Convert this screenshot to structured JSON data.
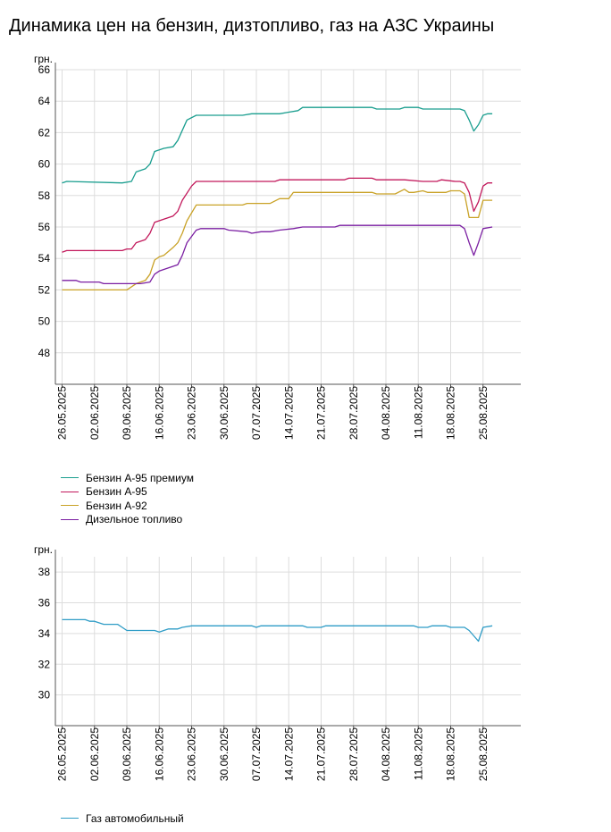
{
  "title": "Динамика цен на бензин, дизтопливо, газ на АЗС Украины",
  "chart_data": [
    {
      "type": "line",
      "ylabel": "грн.",
      "ylim": [
        46,
        66
      ],
      "yticks": [
        48,
        50,
        52,
        54,
        56,
        58,
        60,
        62,
        64,
        66
      ],
      "x_range": [
        "26.05.2025",
        "27.08.2025"
      ],
      "x_ticks": [
        "26.05.2025",
        "02.06.2025",
        "09.06.2025",
        "16.06.2025",
        "23.06.2025",
        "30.06.2025",
        "07.07.2025",
        "14.07.2025",
        "21.07.2025",
        "28.07.2025",
        "04.08.2025",
        "11.08.2025",
        "18.08.2025",
        "25.08.2025"
      ],
      "grid": true,
      "legend_position": "bottom-left",
      "series": [
        {
          "name": "Бензин А-95 премиум",
          "color": "#1a9e8f",
          "points": [
            [
              "26.05.2025",
              58.8
            ],
            [
              "27.05.2025",
              58.9
            ],
            [
              "08.06.2025",
              58.8
            ],
            [
              "10.06.2025",
              58.9
            ],
            [
              "11.06.2025",
              59.5
            ],
            [
              "13.06.2025",
              59.7
            ],
            [
              "14.06.2025",
              60.0
            ],
            [
              "15.06.2025",
              60.8
            ],
            [
              "17.06.2025",
              61.0
            ],
            [
              "19.06.2025",
              61.1
            ],
            [
              "20.06.2025",
              61.5
            ],
            [
              "22.06.2025",
              62.8
            ],
            [
              "24.06.2025",
              63.1
            ],
            [
              "04.07.2025",
              63.1
            ],
            [
              "06.07.2025",
              63.2
            ],
            [
              "12.07.2025",
              63.2
            ],
            [
              "14.07.2025",
              63.3
            ],
            [
              "16.07.2025",
              63.4
            ],
            [
              "17.07.2025",
              63.6
            ],
            [
              "01.08.2025",
              63.6
            ],
            [
              "02.08.2025",
              63.5
            ],
            [
              "07.08.2025",
              63.5
            ],
            [
              "08.08.2025",
              63.6
            ],
            [
              "11.08.2025",
              63.6
            ],
            [
              "12.08.2025",
              63.5
            ],
            [
              "20.08.2025",
              63.5
            ],
            [
              "21.08.2025",
              63.4
            ],
            [
              "22.08.2025",
              62.8
            ],
            [
              "23.08.2025",
              62.1
            ],
            [
              "24.08.2025",
              62.5
            ],
            [
              "25.08.2025",
              63.1
            ],
            [
              "26.08.2025",
              63.2
            ],
            [
              "27.08.2025",
              63.2
            ]
          ]
        },
        {
          "name": "Бензин А-95",
          "color": "#c2185b",
          "points": [
            [
              "26.05.2025",
              54.4
            ],
            [
              "27.05.2025",
              54.5
            ],
            [
              "29.05.2025",
              54.5
            ],
            [
              "30.05.2025",
              54.5
            ],
            [
              "08.06.2025",
              54.5
            ],
            [
              "09.06.2025",
              54.6
            ],
            [
              "10.06.2025",
              54.6
            ],
            [
              "11.06.2025",
              55.0
            ],
            [
              "13.06.2025",
              55.2
            ],
            [
              "14.06.2025",
              55.6
            ],
            [
              "15.06.2025",
              56.3
            ],
            [
              "17.06.2025",
              56.5
            ],
            [
              "19.06.2025",
              56.7
            ],
            [
              "20.06.2025",
              57.0
            ],
            [
              "21.06.2025",
              57.7
            ],
            [
              "23.06.2025",
              58.6
            ],
            [
              "24.06.2025",
              58.9
            ],
            [
              "11.07.2025",
              58.9
            ],
            [
              "12.07.2025",
              59.0
            ],
            [
              "26.07.2025",
              59.0
            ],
            [
              "27.07.2025",
              59.1
            ],
            [
              "01.08.2025",
              59.1
            ],
            [
              "02.08.2025",
              59.0
            ],
            [
              "07.08.2025",
              59.0
            ],
            [
              "08.08.2025",
              59.0
            ],
            [
              "12.08.2025",
              58.9
            ],
            [
              "15.08.2025",
              58.9
            ],
            [
              "16.08.2025",
              59.0
            ],
            [
              "19.08.2025",
              58.9
            ],
            [
              "20.08.2025",
              58.9
            ],
            [
              "21.08.2025",
              58.8
            ],
            [
              "22.08.2025",
              58.2
            ],
            [
              "23.08.2025",
              57.0
            ],
            [
              "24.08.2025",
              57.6
            ],
            [
              "25.08.2025",
              58.6
            ],
            [
              "26.08.2025",
              58.8
            ],
            [
              "27.08.2025",
              58.8
            ]
          ]
        },
        {
          "name": "Бензин А-92",
          "color": "#c9a227",
          "points": [
            [
              "26.05.2025",
              52.0
            ],
            [
              "09.06.2025",
              52.0
            ],
            [
              "10.06.2025",
              52.2
            ],
            [
              "11.06.2025",
              52.4
            ],
            [
              "13.06.2025",
              52.6
            ],
            [
              "14.06.2025",
              53.0
            ],
            [
              "15.06.2025",
              53.9
            ],
            [
              "16.06.2025",
              54.1
            ],
            [
              "17.06.2025",
              54.2
            ],
            [
              "19.06.2025",
              54.7
            ],
            [
              "20.06.2025",
              55.0
            ],
            [
              "21.06.2025",
              55.6
            ],
            [
              "22.06.2025",
              56.4
            ],
            [
              "24.06.2025",
              57.4
            ],
            [
              "04.07.2025",
              57.4
            ],
            [
              "05.07.2025",
              57.5
            ],
            [
              "10.07.2025",
              57.5
            ],
            [
              "12.07.2025",
              57.8
            ],
            [
              "14.07.2025",
              57.8
            ],
            [
              "15.07.2025",
              58.2
            ],
            [
              "01.08.2025",
              58.2
            ],
            [
              "02.08.2025",
              58.1
            ],
            [
              "06.08.2025",
              58.1
            ],
            [
              "08.08.2025",
              58.4
            ],
            [
              "09.08.2025",
              58.2
            ],
            [
              "10.08.2025",
              58.2
            ],
            [
              "12.08.2025",
              58.3
            ],
            [
              "13.08.2025",
              58.2
            ],
            [
              "17.08.2025",
              58.2
            ],
            [
              "18.08.2025",
              58.3
            ],
            [
              "20.08.2025",
              58.3
            ],
            [
              "21.08.2025",
              58.1
            ],
            [
              "22.08.2025",
              56.6
            ],
            [
              "23.08.2025",
              56.6
            ],
            [
              "24.08.2025",
              56.6
            ],
            [
              "25.08.2025",
              57.7
            ],
            [
              "27.08.2025",
              57.7
            ]
          ]
        },
        {
          "name": "Дизельное топливо",
          "color": "#7b1fa2",
          "points": [
            [
              "26.05.2025",
              52.6
            ],
            [
              "29.05.2025",
              52.6
            ],
            [
              "30.05.2025",
              52.5
            ],
            [
              "03.06.2025",
              52.5
            ],
            [
              "04.06.2025",
              52.4
            ],
            [
              "12.06.2025",
              52.4
            ],
            [
              "14.06.2025",
              52.5
            ],
            [
              "15.06.2025",
              53.0
            ],
            [
              "16.06.2025",
              53.2
            ],
            [
              "18.06.2025",
              53.4
            ],
            [
              "20.06.2025",
              53.6
            ],
            [
              "21.06.2025",
              54.2
            ],
            [
              "22.06.2025",
              55.0
            ],
            [
              "24.06.2025",
              55.8
            ],
            [
              "25.06.2025",
              55.9
            ],
            [
              "30.06.2025",
              55.9
            ],
            [
              "01.07.2025",
              55.8
            ],
            [
              "05.07.2025",
              55.7
            ],
            [
              "06.07.2025",
              55.6
            ],
            [
              "08.07.2025",
              55.7
            ],
            [
              "10.07.2025",
              55.7
            ],
            [
              "12.07.2025",
              55.8
            ],
            [
              "15.07.2025",
              55.9
            ],
            [
              "17.07.2025",
              56.0
            ],
            [
              "24.07.2025",
              56.0
            ],
            [
              "25.07.2025",
              56.1
            ],
            [
              "06.08.2025",
              56.1
            ],
            [
              "07.08.2025",
              56.1
            ],
            [
              "08.08.2025",
              56.1
            ],
            [
              "20.08.2025",
              56.1
            ],
            [
              "21.08.2025",
              55.9
            ],
            [
              "22.08.2025",
              55.0
            ],
            [
              "23.08.2025",
              54.2
            ],
            [
              "24.08.2025",
              55.0
            ],
            [
              "25.08.2025",
              55.9
            ],
            [
              "27.08.2025",
              56.0
            ]
          ]
        }
      ]
    },
    {
      "type": "line",
      "ylabel": "грн.",
      "ylim": [
        28,
        39
      ],
      "yticks": [
        30,
        32,
        34,
        36,
        38
      ],
      "x_range": [
        "26.05.2025",
        "27.08.2025"
      ],
      "x_ticks": [
        "26.05.2025",
        "02.06.2025",
        "09.06.2025",
        "16.06.2025",
        "23.06.2025",
        "30.06.2025",
        "07.07.2025",
        "14.07.2025",
        "21.07.2025",
        "28.07.2025",
        "04.08.2025",
        "11.08.2025",
        "18.08.2025",
        "25.08.2025"
      ],
      "grid": true,
      "legend_position": "bottom-left",
      "series": [
        {
          "name": "Газ автомобильный",
          "color": "#2e9cc6",
          "points": [
            [
              "26.05.2025",
              34.9
            ],
            [
              "31.05.2025",
              34.9
            ],
            [
              "01.06.2025",
              34.8
            ],
            [
              "02.06.2025",
              34.8
            ],
            [
              "04.06.2025",
              34.6
            ],
            [
              "07.06.2025",
              34.6
            ],
            [
              "08.06.2025",
              34.4
            ],
            [
              "09.06.2025",
              34.2
            ],
            [
              "15.06.2025",
              34.2
            ],
            [
              "16.06.2025",
              34.1
            ],
            [
              "17.06.2025",
              34.2
            ],
            [
              "18.06.2025",
              34.3
            ],
            [
              "20.06.2025",
              34.3
            ],
            [
              "21.06.2025",
              34.4
            ],
            [
              "23.06.2025",
              34.5
            ],
            [
              "06.07.2025",
              34.5
            ],
            [
              "07.07.2025",
              34.4
            ],
            [
              "08.07.2025",
              34.5
            ],
            [
              "17.07.2025",
              34.5
            ],
            [
              "18.07.2025",
              34.4
            ],
            [
              "21.07.2025",
              34.4
            ],
            [
              "22.07.2025",
              34.5
            ],
            [
              "10.08.2025",
              34.5
            ],
            [
              "11.08.2025",
              34.4
            ],
            [
              "13.08.2025",
              34.4
            ],
            [
              "14.08.2025",
              34.5
            ],
            [
              "17.08.2025",
              34.5
            ],
            [
              "18.08.2025",
              34.4
            ],
            [
              "21.08.2025",
              34.4
            ],
            [
              "22.08.2025",
              34.2
            ],
            [
              "24.08.2025",
              33.5
            ],
            [
              "25.08.2025",
              34.4
            ],
            [
              "27.08.2025",
              34.5
            ]
          ]
        }
      ]
    }
  ]
}
